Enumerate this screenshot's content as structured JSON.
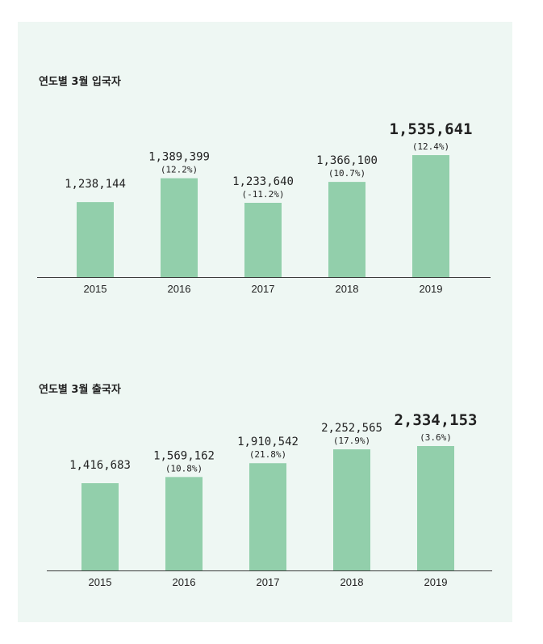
{
  "colors": {
    "background": "#eef7f3",
    "bar": "#92cfab",
    "text": "#222222",
    "axis": "#3a3a3a"
  },
  "chart_data": [
    {
      "type": "bar",
      "title": "연도별 3월 입국자",
      "categories": [
        "2015",
        "2016",
        "2017",
        "2018",
        "2019"
      ],
      "values": [
        1238144,
        1389399,
        1233640,
        1366100,
        1535641
      ],
      "value_labels": [
        "1,238,144",
        "1,389,399",
        "1,233,640",
        "1,366,100",
        "1,535,641"
      ],
      "growth_labels": [
        "",
        "(12.2%)",
        "(-11.2%)",
        "(10.7%)",
        "(12.4%)"
      ],
      "highlight_index": 4,
      "xlabel": "",
      "ylabel": "",
      "grid": false
    },
    {
      "type": "bar",
      "title": "연도별 3월 출국자",
      "categories": [
        "2015",
        "2016",
        "2017",
        "2018",
        "2019"
      ],
      "values": [
        1416683,
        1569162,
        1910542,
        2252565,
        2334153
      ],
      "value_labels": [
        "1,416,683",
        "1,569,162",
        "1,910,542",
        "2,252,565",
        "2,334,153"
      ],
      "growth_labels": [
        "",
        "(10.8%)",
        "(21.8%)",
        "(17.9%)",
        "(3.6%)"
      ],
      "highlight_index": 4,
      "xlabel": "",
      "ylabel": "",
      "grid": false
    }
  ]
}
